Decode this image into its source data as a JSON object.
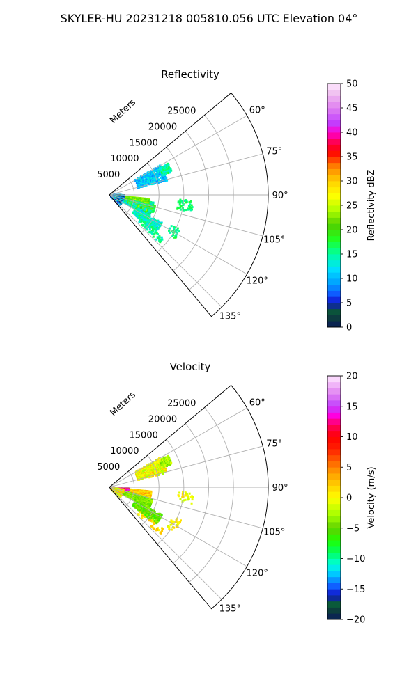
{
  "figure_title": "SKYLER-HU  20231218  005810.056 UTC Elevation 04°",
  "colors": {
    "grid": "#b0b0b0",
    "frame": "#000000"
  },
  "chart_data": [
    {
      "type": "heatmap",
      "subtype": "polar-sector",
      "title": "Reflectivity",
      "radial_label": "Meters",
      "radial_ticks": [
        "5000",
        "10000",
        "15000",
        "20000",
        "25000"
      ],
      "radial_tick_values": [
        5000,
        10000,
        15000,
        20000,
        25000
      ],
      "rlim": [
        0,
        32000
      ],
      "azimuth_ticks": [
        "60°",
        "75°",
        "90°",
        "105°",
        "120°",
        "135°"
      ],
      "azimuth_tick_values": [
        60,
        75,
        90,
        105,
        120,
        135
      ],
      "azimuth_range": [
        50,
        140
      ],
      "grid": true,
      "colorbar": {
        "label": "Reflectivity dBZ",
        "range": [
          0,
          50
        ],
        "ticks": [
          "0",
          "5",
          "10",
          "15",
          "20",
          "25",
          "30",
          "35",
          "40",
          "45",
          "50"
        ],
        "tick_values": [
          0,
          5,
          10,
          15,
          20,
          25,
          30,
          35,
          40,
          45,
          50
        ],
        "stops": [
          {
            "v": 0,
            "c": "#0a1a5a"
          },
          {
            "v": 2,
            "c": "#0d3d3d"
          },
          {
            "v": 3.5,
            "c": "#0a5a3a"
          },
          {
            "v": 5,
            "c": "#1010c8"
          },
          {
            "v": 6.5,
            "c": "#1050ff"
          },
          {
            "v": 9,
            "c": "#00a0ff"
          },
          {
            "v": 12,
            "c": "#00e0ff"
          },
          {
            "v": 15,
            "c": "#00ffa0"
          },
          {
            "v": 18,
            "c": "#20ff20"
          },
          {
            "v": 21,
            "c": "#50d000"
          },
          {
            "v": 24,
            "c": "#b0ff00"
          },
          {
            "v": 27,
            "c": "#ffff00"
          },
          {
            "v": 30,
            "c": "#ffd000"
          },
          {
            "v": 33,
            "c": "#ff8000"
          },
          {
            "v": 36,
            "c": "#ff0000"
          },
          {
            "v": 38,
            "c": "#ff0050"
          },
          {
            "v": 40,
            "c": "#ff00d0"
          },
          {
            "v": 42,
            "c": "#c040ff"
          },
          {
            "v": 45,
            "c": "#e080f0"
          },
          {
            "v": 48,
            "c": "#f0c0f0"
          },
          {
            "v": 50,
            "c": "#ffe8ff"
          }
        ]
      },
      "echo_regions": [
        {
          "az": [
            100,
            118
          ],
          "r": [
            1000,
            9000
          ],
          "value": 14,
          "jitter": 5,
          "density": 0.65
        },
        {
          "az": [
            96,
            104
          ],
          "r": [
            1500,
            8000
          ],
          "value": 22,
          "jitter": 4,
          "density": 0.75
        },
        {
          "az": [
            104,
            112
          ],
          "r": [
            4000,
            9500
          ],
          "value": 18,
          "jitter": 6,
          "density": 0.7
        },
        {
          "az": [
            118,
            128
          ],
          "r": [
            6000,
            12000
          ],
          "value": 14,
          "jitter": 3,
          "density": 0.35
        },
        {
          "az": [
            60,
            76
          ],
          "r": [
            6000,
            12000
          ],
          "value": 11,
          "jitter": 3,
          "density": 0.3
        },
        {
          "az": [
            62,
            70
          ],
          "r": [
            11500,
            13500
          ],
          "value": 15,
          "jitter": 3,
          "density": 0.4
        },
        {
          "az": [
            90,
            135
          ],
          "r": [
            500,
            3000
          ],
          "value": 8,
          "jitter": 8,
          "density": 0.35
        },
        {
          "az": [
            94,
            102
          ],
          "r": [
            14000,
            17000
          ],
          "value": 16,
          "jitter": 2,
          "density": 0.12
        },
        {
          "az": [
            115,
            125
          ],
          "r": [
            14000,
            16000
          ],
          "value": 16,
          "jitter": 2,
          "density": 0.1
        },
        {
          "az": [
            128,
            134
          ],
          "r": [
            8000,
            14000
          ],
          "value": 15,
          "jitter": 2,
          "density": 0.12
        }
      ]
    },
    {
      "type": "heatmap",
      "subtype": "polar-sector",
      "title": "Velocity",
      "radial_label": "Meters",
      "radial_ticks": [
        "5000",
        "10000",
        "15000",
        "20000",
        "25000"
      ],
      "radial_tick_values": [
        5000,
        10000,
        15000,
        20000,
        25000
      ],
      "rlim": [
        0,
        32000
      ],
      "azimuth_ticks": [
        "60°",
        "75°",
        "90°",
        "105°",
        "120°",
        "135°"
      ],
      "azimuth_tick_values": [
        60,
        75,
        90,
        105,
        120,
        135
      ],
      "azimuth_range": [
        50,
        140
      ],
      "grid": true,
      "colorbar": {
        "label": "Velocity (m/s)",
        "range": [
          -20,
          20
        ],
        "ticks": [
          "−20",
          "−15",
          "−10",
          "−5",
          "0",
          "5",
          "10",
          "15",
          "20"
        ],
        "tick_values": [
          -20,
          -15,
          -10,
          -5,
          0,
          5,
          10,
          15,
          20
        ],
        "stops": [
          {
            "v": -20,
            "c": "#0a1a5a"
          },
          {
            "v": -18.5,
            "c": "#0d3d3d"
          },
          {
            "v": -17.5,
            "c": "#0a5a3a"
          },
          {
            "v": -16,
            "c": "#1010c8"
          },
          {
            "v": -14.5,
            "c": "#1060ff"
          },
          {
            "v": -12.5,
            "c": "#00c8ff"
          },
          {
            "v": -11,
            "c": "#00ffe0"
          },
          {
            "v": -9,
            "c": "#00ff60"
          },
          {
            "v": -7,
            "c": "#20ff00"
          },
          {
            "v": -5,
            "c": "#60d000"
          },
          {
            "v": -3,
            "c": "#a0ff00"
          },
          {
            "v": -1,
            "c": "#e0ff00"
          },
          {
            "v": 0,
            "c": "#ffff00"
          },
          {
            "v": 2,
            "c": "#ffd000"
          },
          {
            "v": 4,
            "c": "#ffa000"
          },
          {
            "v": 6,
            "c": "#ff6000"
          },
          {
            "v": 8,
            "c": "#ff2000"
          },
          {
            "v": 10,
            "c": "#ff0000"
          },
          {
            "v": 12,
            "c": "#ff0060"
          },
          {
            "v": 13.5,
            "c": "#ff00e0"
          },
          {
            "v": 15,
            "c": "#c040ff"
          },
          {
            "v": 17,
            "c": "#e080f0"
          },
          {
            "v": 20,
            "c": "#ffe8ff"
          }
        ]
      },
      "echo_regions": [
        {
          "az": [
            96,
            106
          ],
          "r": [
            1500,
            8500
          ],
          "value": 2,
          "jitter": 3,
          "density": 0.75
        },
        {
          "az": [
            106,
            118
          ],
          "r": [
            1500,
            9000
          ],
          "value": -4,
          "jitter": 2,
          "density": 0.65
        },
        {
          "az": [
            93,
            100
          ],
          "r": [
            500,
            4000
          ],
          "value": 12,
          "jitter": 5,
          "density": 0.6
        },
        {
          "az": [
            118,
            128
          ],
          "r": [
            6000,
            12000
          ],
          "value": -5,
          "jitter": 2,
          "density": 0.35
        },
        {
          "az": [
            60,
            76
          ],
          "r": [
            6000,
            12000
          ],
          "value": 0,
          "jitter": 3,
          "density": 0.3
        },
        {
          "az": [
            62,
            70
          ],
          "r": [
            11500,
            13500
          ],
          "value": -3,
          "jitter": 2,
          "density": 0.4
        },
        {
          "az": [
            100,
            135
          ],
          "r": [
            500,
            3000
          ],
          "value": 0,
          "jitter": 4,
          "density": 0.3
        },
        {
          "az": [
            94,
            102
          ],
          "r": [
            14000,
            17000
          ],
          "value": 0,
          "jitter": 2,
          "density": 0.12
        },
        {
          "az": [
            115,
            125
          ],
          "r": [
            14000,
            16000
          ],
          "value": 0,
          "jitter": 2,
          "density": 0.1
        },
        {
          "az": [
            128,
            134
          ],
          "r": [
            8000,
            14000
          ],
          "value": 1,
          "jitter": 2,
          "density": 0.12
        }
      ]
    }
  ]
}
